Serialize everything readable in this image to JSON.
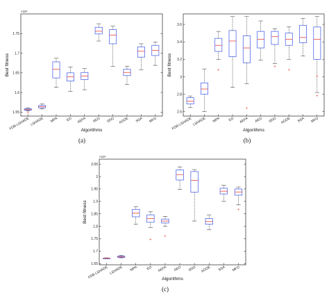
{
  "chart_data": [
    {
      "type": "box",
      "panel_label": "(a)",
      "xlabel": "Algorithms",
      "ylabel": "Best fitness",
      "y_exponent": "×10⁴",
      "categories": [
        "FDB-LSHADE",
        "LSHADE",
        "MPA",
        "EO",
        "AEFA",
        "AEO",
        "SDO",
        "AGDE",
        "SSA",
        "MFO"
      ],
      "ylim": [
        1.54,
        1.8
      ],
      "yticks": [
        1.55,
        1.6,
        1.65,
        1.7,
        1.75
      ],
      "ytick_labels": [
        "1.55",
        "1.6",
        "1.65",
        "1.7",
        "1.75"
      ],
      "boxes": [
        {
          "min": 1.553,
          "q1": 1.555,
          "median": 1.557,
          "q3": 1.559,
          "max": 1.561,
          "outliers": [
            1.549
          ]
        },
        {
          "min": 1.558,
          "q1": 1.561,
          "median": 1.564,
          "q3": 1.567,
          "max": 1.571,
          "outliers": []
        },
        {
          "min": 1.613,
          "q1": 1.637,
          "median": 1.659,
          "q3": 1.678,
          "max": 1.687,
          "outliers": []
        },
        {
          "min": 1.603,
          "q1": 1.629,
          "median": 1.64,
          "q3": 1.65,
          "max": 1.665,
          "outliers": []
        },
        {
          "min": 1.607,
          "q1": 1.633,
          "median": 1.642,
          "q3": 1.651,
          "max": 1.661,
          "outliers": []
        },
        {
          "min": 1.731,
          "q1": 1.749,
          "median": 1.756,
          "q3": 1.766,
          "max": 1.775,
          "outliers": []
        },
        {
          "min": 1.666,
          "q1": 1.724,
          "median": 1.746,
          "q3": 1.76,
          "max": 1.769,
          "outliers": []
        },
        {
          "min": 1.62,
          "q1": 1.643,
          "median": 1.651,
          "q3": 1.659,
          "max": 1.667,
          "outliers": []
        },
        {
          "min": 1.658,
          "q1": 1.69,
          "median": 1.705,
          "q3": 1.716,
          "max": 1.724,
          "outliers": []
        },
        {
          "min": 1.669,
          "q1": 1.694,
          "median": 1.707,
          "q3": 1.72,
          "max": 1.728,
          "outliers": []
        }
      ]
    },
    {
      "type": "box",
      "panel_label": "(b)",
      "xlabel": "Algorithms",
      "ylabel": "Best fitness",
      "y_exponent": "",
      "categories": [
        "FDB-LSHADE",
        "LSHADE",
        "MPA",
        "EO",
        "AEFA",
        "AEO",
        "SDO",
        "AGDE",
        "SSA",
        "MFO"
      ],
      "ylim": [
        2.55,
        3.72
      ],
      "yticks": [
        2.6,
        2.8,
        3.0,
        3.2,
        3.4,
        3.6
      ],
      "ytick_labels": [
        "2.6",
        "2.8",
        "3",
        "3.2",
        "3.4",
        "3.6"
      ],
      "boxes": [
        {
          "min": 2.65,
          "q1": 2.69,
          "median": 2.72,
          "q3": 2.76,
          "max": 2.78,
          "outliers": []
        },
        {
          "min": 2.6,
          "q1": 2.8,
          "median": 2.86,
          "q3": 2.93,
          "max": 3.09,
          "outliers": []
        },
        {
          "min": 3.2,
          "q1": 3.29,
          "median": 3.36,
          "q3": 3.44,
          "max": 3.52,
          "outliers": [
            3.08
          ]
        },
        {
          "min": 2.88,
          "q1": 3.23,
          "median": 3.41,
          "q3": 3.53,
          "max": 3.69,
          "outliers": []
        },
        {
          "min": 2.92,
          "q1": 3.16,
          "median": 3.33,
          "q3": 3.47,
          "max": 3.69,
          "outliers": [
            2.64
          ]
        },
        {
          "min": 3.19,
          "q1": 3.33,
          "median": 3.43,
          "q3": 3.52,
          "max": 3.64,
          "outliers": []
        },
        {
          "min": 3.15,
          "q1": 3.37,
          "median": 3.46,
          "q3": 3.52,
          "max": 3.55,
          "outliers": [
            3.12
          ]
        },
        {
          "min": 3.2,
          "q1": 3.36,
          "median": 3.43,
          "q3": 3.5,
          "max": 3.57,
          "outliers": [
            3.08
          ]
        },
        {
          "min": 3.24,
          "q1": 3.39,
          "median": 3.45,
          "q3": 3.59,
          "max": 3.67,
          "outliers": []
        },
        {
          "min": 2.82,
          "q1": 3.2,
          "median": 3.43,
          "q3": 3.57,
          "max": 3.69,
          "outliers": [
            3.01,
            2.78
          ]
        }
      ]
    },
    {
      "type": "box",
      "panel_label": "(c)",
      "xlabel": "Algorithms",
      "ylabel": "Best fitness",
      "y_exponent": "×10⁴",
      "categories": [
        "FDB-LSHADE",
        "LSHADE",
        "MPA",
        "EO",
        "AEFA",
        "AEO",
        "SDO",
        "AGDE",
        "SSA",
        "MFO"
      ],
      "ylim": [
        1.645,
        2.07
      ],
      "yticks": [
        1.65,
        1.7,
        1.75,
        1.8,
        1.85,
        1.9,
        1.95,
        2.0,
        2.05
      ],
      "ytick_labels": [
        "1.65",
        "1.7",
        "1.75",
        "1.8",
        "1.85",
        "1.9",
        "1.95",
        "2",
        "2.05"
      ],
      "boxes": [
        {
          "min": 1.669,
          "q1": 1.67,
          "median": 1.671,
          "q3": 1.672,
          "max": 1.673,
          "outliers": []
        },
        {
          "min": 1.673,
          "q1": 1.675,
          "median": 1.677,
          "q3": 1.68,
          "max": 1.683,
          "outliers": []
        },
        {
          "min": 1.808,
          "q1": 1.838,
          "median": 1.853,
          "q3": 1.868,
          "max": 1.878,
          "outliers": []
        },
        {
          "min": 1.795,
          "q1": 1.816,
          "median": 1.831,
          "q3": 1.846,
          "max": 1.858,
          "outliers": [
            1.748
          ]
        },
        {
          "min": 1.8,
          "q1": 1.813,
          "median": 1.821,
          "q3": 1.829,
          "max": 1.84,
          "outliers": [
            1.76
          ]
        },
        {
          "min": 1.948,
          "q1": 1.986,
          "median": 2.008,
          "q3": 2.027,
          "max": 2.039,
          "outliers": []
        },
        {
          "min": 1.821,
          "q1": 1.937,
          "median": 1.985,
          "q3": 2.02,
          "max": 2.028,
          "outliers": []
        },
        {
          "min": 1.786,
          "q1": 1.808,
          "median": 1.819,
          "q3": 1.831,
          "max": 1.846,
          "outliers": []
        },
        {
          "min": 1.901,
          "q1": 1.93,
          "median": 1.941,
          "q3": 1.953,
          "max": 1.965,
          "outliers": []
        },
        {
          "min": 1.886,
          "q1": 1.925,
          "median": 1.938,
          "q3": 1.95,
          "max": 1.958,
          "outliers": [
            1.868
          ]
        }
      ]
    }
  ],
  "colors": {
    "box_edge": "#3a55e8",
    "median": "#e8443a",
    "whisker": "#222222",
    "outlier": "#e8443a",
    "axis": "#000000"
  }
}
